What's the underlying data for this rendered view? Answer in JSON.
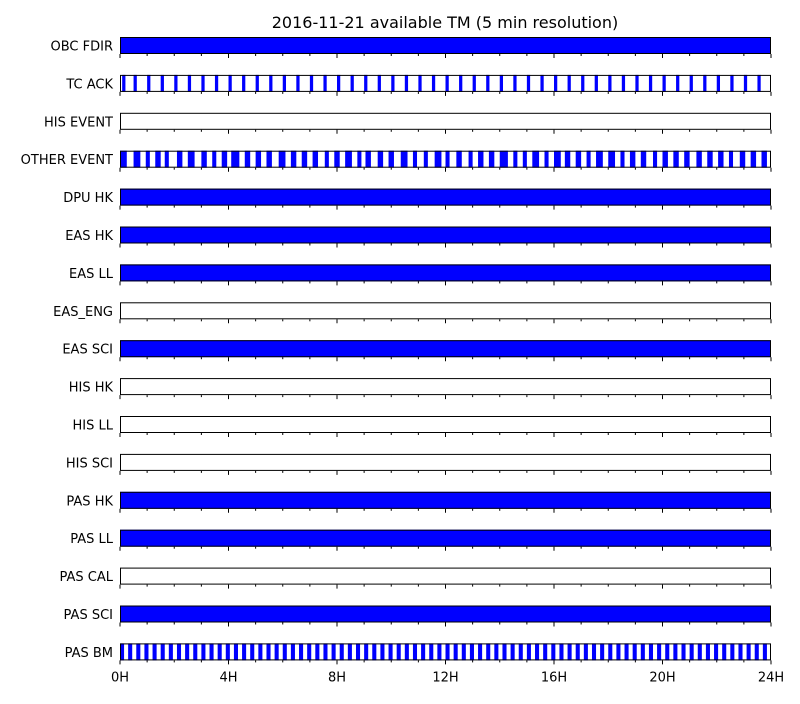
{
  "chart_data": {
    "type": "timeline",
    "title": "2016-11-21 available TM (5 min resolution)",
    "x_unit": "hours",
    "xlim": [
      0,
      24
    ],
    "x_ticks": [
      {
        "value": 0,
        "label": "0H"
      },
      {
        "value": 4,
        "label": "4H"
      },
      {
        "value": 8,
        "label": "8H"
      },
      {
        "value": 12,
        "label": "12H"
      },
      {
        "value": 16,
        "label": "16H"
      },
      {
        "value": 20,
        "label": "20H"
      },
      {
        "value": 24,
        "label": "24H"
      }
    ],
    "x_minor_tick_interval_hours": 1,
    "available_color": "#0000ff",
    "frame_color": "#000000",
    "rows": [
      {
        "name": "OBC FDIR",
        "available": [
          [
            0,
            24
          ]
        ]
      },
      {
        "name": "TC ACK",
        "available": [
          [
            0.08,
            0.2
          ],
          [
            0.5,
            0.62
          ],
          [
            1.0,
            1.12
          ],
          [
            1.5,
            1.62
          ],
          [
            2.0,
            2.12
          ],
          [
            2.5,
            2.62
          ],
          [
            3.0,
            3.12
          ],
          [
            3.5,
            3.62
          ],
          [
            4.0,
            4.12
          ],
          [
            4.5,
            4.62
          ],
          [
            5.0,
            5.12
          ],
          [
            5.5,
            5.62
          ],
          [
            6.0,
            6.12
          ],
          [
            6.5,
            6.62
          ],
          [
            7.0,
            7.12
          ],
          [
            7.5,
            7.62
          ],
          [
            8.0,
            8.12
          ],
          [
            8.5,
            8.62
          ],
          [
            9.0,
            9.12
          ],
          [
            9.5,
            9.62
          ],
          [
            10.0,
            10.12
          ],
          [
            10.5,
            10.62
          ],
          [
            11.0,
            11.12
          ],
          [
            11.5,
            11.62
          ],
          [
            12.0,
            12.12
          ],
          [
            12.5,
            12.62
          ],
          [
            13.0,
            13.12
          ],
          [
            13.5,
            13.62
          ],
          [
            14.0,
            14.12
          ],
          [
            14.5,
            14.62
          ],
          [
            15.0,
            15.12
          ],
          [
            15.5,
            15.62
          ],
          [
            16.0,
            16.12
          ],
          [
            16.5,
            16.62
          ],
          [
            17.0,
            17.12
          ],
          [
            17.5,
            17.62
          ],
          [
            18.0,
            18.12
          ],
          [
            18.5,
            18.62
          ],
          [
            19.0,
            19.12
          ],
          [
            19.5,
            19.62
          ],
          [
            20.0,
            20.12
          ],
          [
            20.5,
            20.62
          ],
          [
            21.0,
            21.12
          ],
          [
            21.5,
            21.62
          ],
          [
            22.0,
            22.12
          ],
          [
            22.5,
            22.62
          ],
          [
            23.0,
            23.12
          ],
          [
            23.5,
            23.62
          ]
        ]
      },
      {
        "name": "HIS EVENT",
        "available": []
      },
      {
        "name": "OTHER EVENT",
        "available": [
          [
            0,
            0.25
          ],
          [
            0.5,
            0.75
          ],
          [
            0.95,
            1.1
          ],
          [
            1.3,
            1.5
          ],
          [
            1.65,
            1.8
          ],
          [
            2.1,
            2.3
          ],
          [
            2.5,
            2.75
          ],
          [
            3.0,
            3.2
          ],
          [
            3.4,
            3.55
          ],
          [
            3.75,
            3.95
          ],
          [
            4.1,
            4.4
          ],
          [
            4.6,
            4.8
          ],
          [
            5.0,
            5.2
          ],
          [
            5.4,
            5.6
          ],
          [
            5.85,
            6.1
          ],
          [
            6.3,
            6.5
          ],
          [
            6.7,
            6.9
          ],
          [
            7.1,
            7.3
          ],
          [
            7.55,
            7.7
          ],
          [
            7.9,
            8.1
          ],
          [
            8.3,
            8.55
          ],
          [
            8.75,
            8.9
          ],
          [
            9.05,
            9.25
          ],
          [
            9.5,
            9.7
          ],
          [
            9.9,
            10.1
          ],
          [
            10.35,
            10.6
          ],
          [
            10.8,
            10.95
          ],
          [
            11.2,
            11.35
          ],
          [
            11.6,
            11.85
          ],
          [
            12.0,
            12.15
          ],
          [
            12.4,
            12.6
          ],
          [
            12.85,
            13.0
          ],
          [
            13.2,
            13.4
          ],
          [
            13.6,
            13.8
          ],
          [
            14.0,
            14.3
          ],
          [
            14.5,
            14.65
          ],
          [
            14.85,
            15.0
          ],
          [
            15.2,
            15.45
          ],
          [
            15.65,
            15.8
          ],
          [
            16.0,
            16.25
          ],
          [
            16.4,
            16.6
          ],
          [
            16.8,
            17.0
          ],
          [
            17.2,
            17.35
          ],
          [
            17.55,
            17.8
          ],
          [
            18.0,
            18.25
          ],
          [
            18.45,
            18.6
          ],
          [
            18.8,
            19.0
          ],
          [
            19.2,
            19.4
          ],
          [
            19.65,
            19.8
          ],
          [
            20.0,
            20.2
          ],
          [
            20.4,
            20.6
          ],
          [
            20.8,
            21.0
          ],
          [
            21.25,
            21.45
          ],
          [
            21.65,
            21.85
          ],
          [
            22.05,
            22.25
          ],
          [
            22.45,
            22.6
          ],
          [
            22.85,
            23.05
          ],
          [
            23.25,
            23.45
          ],
          [
            23.65,
            23.85
          ]
        ]
      },
      {
        "name": "DPU HK",
        "available": [
          [
            0,
            24
          ]
        ]
      },
      {
        "name": "EAS HK",
        "available": [
          [
            0,
            24
          ]
        ]
      },
      {
        "name": "EAS LL",
        "available": [
          [
            0,
            24
          ]
        ]
      },
      {
        "name": "EAS_ENG",
        "available": []
      },
      {
        "name": "EAS SCI",
        "available": [
          [
            0,
            24
          ]
        ]
      },
      {
        "name": "HIS HK",
        "available": []
      },
      {
        "name": "HIS LL",
        "available": []
      },
      {
        "name": "HIS SCI",
        "available": []
      },
      {
        "name": "PAS HK",
        "available": [
          [
            0,
            24
          ]
        ]
      },
      {
        "name": "PAS LL",
        "available": [
          [
            0,
            24
          ]
        ]
      },
      {
        "name": "PAS CAL",
        "available": []
      },
      {
        "name": "PAS SCI",
        "available": [
          [
            0,
            24
          ]
        ]
      },
      {
        "name": "PAS BM",
        "available": [
          [
            0.0,
            0.15
          ],
          [
            0.3,
            0.45
          ],
          [
            0.6,
            0.75
          ],
          [
            0.9,
            1.05
          ],
          [
            1.2,
            1.35
          ],
          [
            1.5,
            1.65
          ],
          [
            1.8,
            1.95
          ],
          [
            2.1,
            2.25
          ],
          [
            2.4,
            2.55
          ],
          [
            2.7,
            2.85
          ],
          [
            3.0,
            3.15
          ],
          [
            3.3,
            3.45
          ],
          [
            3.6,
            3.75
          ],
          [
            3.9,
            4.05
          ],
          [
            4.2,
            4.35
          ],
          [
            4.5,
            4.65
          ],
          [
            4.8,
            4.95
          ],
          [
            5.1,
            5.25
          ],
          [
            5.4,
            5.55
          ],
          [
            5.7,
            5.85
          ],
          [
            6.0,
            6.15
          ],
          [
            6.3,
            6.45
          ],
          [
            6.6,
            6.75
          ],
          [
            6.9,
            7.05
          ],
          [
            7.2,
            7.35
          ],
          [
            7.5,
            7.65
          ],
          [
            7.8,
            7.95
          ],
          [
            8.1,
            8.25
          ],
          [
            8.4,
            8.55
          ],
          [
            8.7,
            8.85
          ],
          [
            9.0,
            9.15
          ],
          [
            9.3,
            9.45
          ],
          [
            9.6,
            9.75
          ],
          [
            9.9,
            10.05
          ],
          [
            10.2,
            10.35
          ],
          [
            10.5,
            10.65
          ],
          [
            10.8,
            10.95
          ],
          [
            11.1,
            11.25
          ],
          [
            11.4,
            11.55
          ],
          [
            11.7,
            11.85
          ],
          [
            12.0,
            12.15
          ],
          [
            12.3,
            12.45
          ],
          [
            12.6,
            12.75
          ],
          [
            12.9,
            13.05
          ],
          [
            13.2,
            13.35
          ],
          [
            13.5,
            13.65
          ],
          [
            13.8,
            13.95
          ],
          [
            14.1,
            14.25
          ],
          [
            14.4,
            14.55
          ],
          [
            14.7,
            14.85
          ],
          [
            15.0,
            15.15
          ],
          [
            15.3,
            15.45
          ],
          [
            15.6,
            15.75
          ],
          [
            15.9,
            16.05
          ],
          [
            16.2,
            16.35
          ],
          [
            16.5,
            16.65
          ],
          [
            16.8,
            16.95
          ],
          [
            17.1,
            17.25
          ],
          [
            17.4,
            17.55
          ],
          [
            17.7,
            17.85
          ],
          [
            18.0,
            18.15
          ],
          [
            18.3,
            18.45
          ],
          [
            18.6,
            18.75
          ],
          [
            18.9,
            19.05
          ],
          [
            19.2,
            19.35
          ],
          [
            19.5,
            19.65
          ],
          [
            19.8,
            19.95
          ],
          [
            20.1,
            20.25
          ],
          [
            20.4,
            20.55
          ],
          [
            20.7,
            20.85
          ],
          [
            21.0,
            21.15
          ],
          [
            21.3,
            21.45
          ],
          [
            21.6,
            21.75
          ],
          [
            21.9,
            22.05
          ],
          [
            22.2,
            22.35
          ],
          [
            22.5,
            22.65
          ],
          [
            22.8,
            22.95
          ],
          [
            23.1,
            23.25
          ],
          [
            23.4,
            23.55
          ],
          [
            23.7,
            23.85
          ]
        ]
      }
    ]
  }
}
